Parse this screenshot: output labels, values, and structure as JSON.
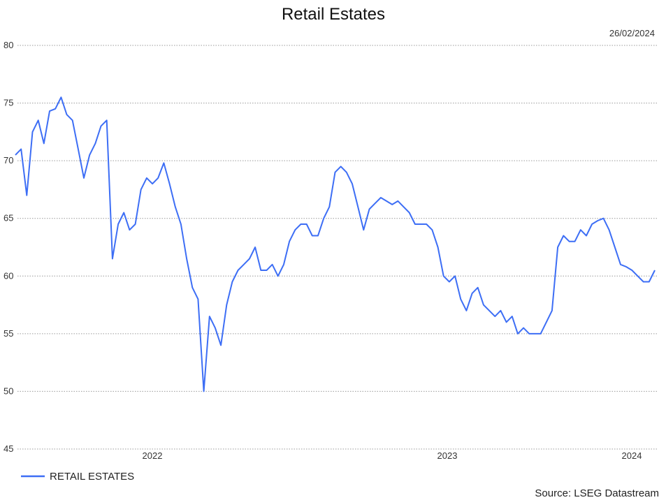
{
  "chart_data": {
    "type": "line",
    "title": "Retail Estates",
    "date_label": "26/02/2024",
    "source": "Source: LSEG Datastream",
    "ylim": [
      45,
      80
    ],
    "yticks": [
      45,
      50,
      55,
      60,
      65,
      70,
      75,
      80
    ],
    "xtick_labels": [
      "2022",
      "2023",
      "2024"
    ],
    "grid": "horizontal dotted",
    "legend_position": "bottom-left",
    "line_color": "#3d6ef5",
    "series": [
      {
        "name": "RETAIL ESTATES",
        "x": [
          "2022-01-03",
          "2022-01-10",
          "2022-01-17",
          "2022-01-24",
          "2022-01-31",
          "2022-02-07",
          "2022-02-14",
          "2022-02-21",
          "2022-02-28",
          "2022-03-07",
          "2022-03-14",
          "2022-03-21",
          "2022-03-28",
          "2022-04-04",
          "2022-04-11",
          "2022-04-18",
          "2022-04-25",
          "2022-05-02",
          "2022-05-09",
          "2022-05-16",
          "2022-05-23",
          "2022-05-30",
          "2022-06-06",
          "2022-06-13",
          "2022-06-20",
          "2022-06-27",
          "2022-07-04",
          "2022-07-11",
          "2022-07-18",
          "2022-07-25",
          "2022-08-01",
          "2022-08-08",
          "2022-08-15",
          "2022-08-22",
          "2022-08-29",
          "2022-09-05",
          "2022-09-12",
          "2022-09-19",
          "2022-09-26",
          "2022-10-03",
          "2022-10-10",
          "2022-10-17",
          "2022-10-24",
          "2022-10-31",
          "2022-11-07",
          "2022-11-14",
          "2022-11-21",
          "2022-11-28",
          "2022-12-05",
          "2022-12-12",
          "2022-12-19",
          "2022-12-26",
          "2023-01-02",
          "2023-01-09",
          "2023-01-16",
          "2023-01-23",
          "2023-01-30",
          "2023-02-06",
          "2023-02-13",
          "2023-02-20",
          "2023-02-27",
          "2023-03-06",
          "2023-03-13",
          "2023-03-20",
          "2023-03-27",
          "2023-04-03",
          "2023-04-10",
          "2023-04-17",
          "2023-04-24",
          "2023-05-01",
          "2023-05-08",
          "2023-05-15",
          "2023-05-22",
          "2023-05-29",
          "2023-06-05",
          "2023-06-12",
          "2023-06-19",
          "2023-06-26",
          "2023-07-03",
          "2023-07-10",
          "2023-07-17",
          "2023-07-24",
          "2023-07-31",
          "2023-08-07",
          "2023-08-14",
          "2023-08-21",
          "2023-08-28",
          "2023-09-04",
          "2023-09-11",
          "2023-09-18",
          "2023-09-25",
          "2023-10-02",
          "2023-10-09",
          "2023-10-16",
          "2023-10-23",
          "2023-10-30",
          "2023-11-06",
          "2023-11-13",
          "2023-11-20",
          "2023-11-27",
          "2023-12-04",
          "2023-12-11",
          "2023-12-18",
          "2023-12-25",
          "2024-01-01",
          "2024-01-08",
          "2024-01-15",
          "2024-01-22",
          "2024-01-29",
          "2024-02-05",
          "2024-02-12",
          "2024-02-19",
          "2024-02-26"
        ],
        "values": [
          70.5,
          71.0,
          67.0,
          72.5,
          73.5,
          71.5,
          74.3,
          74.5,
          75.5,
          74.0,
          73.5,
          71.0,
          68.5,
          70.5,
          71.5,
          73.0,
          73.5,
          61.5,
          64.5,
          65.5,
          64.0,
          64.5,
          67.5,
          68.5,
          68.0,
          68.5,
          69.8,
          68.0,
          66.0,
          64.5,
          61.5,
          59.0,
          58.0,
          50.0,
          56.5,
          55.5,
          54.0,
          57.5,
          59.5,
          60.5,
          61.0,
          61.5,
          62.5,
          60.5,
          60.5,
          61.0,
          60.0,
          61.0,
          63.0,
          64.0,
          64.5,
          64.5,
          63.5,
          63.5,
          65.0,
          66.0,
          69.0,
          69.5,
          69.0,
          68.0,
          66.0,
          64.0,
          65.8,
          66.3,
          66.8,
          66.5,
          66.2,
          66.5,
          66.0,
          65.5,
          64.5,
          64.5,
          64.5,
          64.0,
          62.5,
          60.0,
          59.5,
          60.0,
          58.0,
          57.0,
          58.5,
          59.0,
          57.5,
          57.0,
          56.5,
          57.0,
          56.0,
          56.5,
          55.0,
          55.5,
          55.0,
          55.0,
          55.0,
          56.0,
          57.0,
          62.5,
          63.5,
          63.0,
          63.0,
          64.0,
          63.5,
          64.5,
          64.8,
          65.0,
          64.0,
          62.5,
          61.0,
          60.8,
          60.5,
          60.0,
          59.5,
          59.5,
          60.5
        ]
      }
    ]
  }
}
